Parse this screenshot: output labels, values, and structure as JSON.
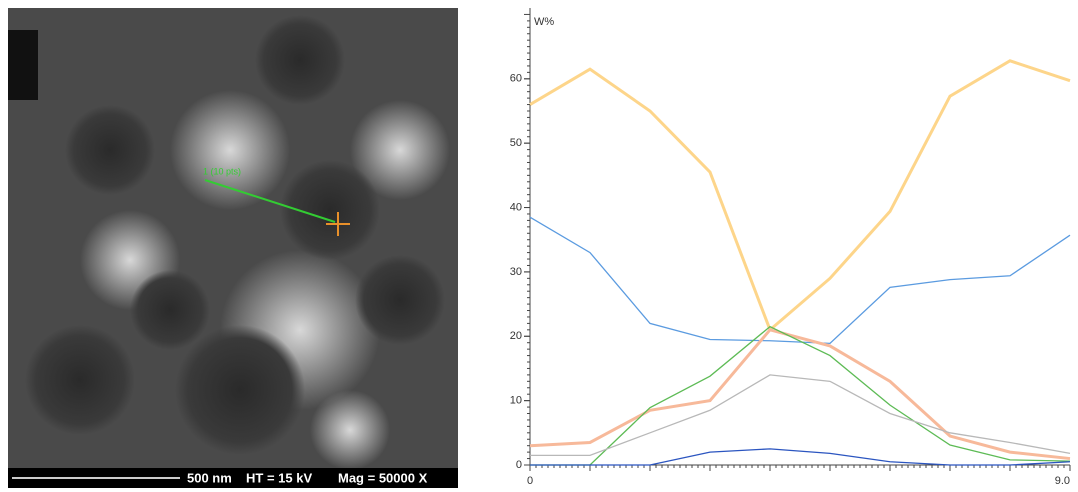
{
  "image": {
    "line_label": "1 (10 pts)",
    "scale": "500 nm",
    "voltage": "HT = 15 kV",
    "magnification": "Mag = 50000 X"
  },
  "chart_data": {
    "type": "line",
    "y_label": "W%",
    "x": [
      0,
      1,
      2,
      3,
      4,
      5,
      6,
      7,
      8,
      9
    ],
    "xlim": [
      0,
      9
    ],
    "xticks": [
      0,
      {
        "value": 9,
        "label": "9.0"
      }
    ],
    "ylim": [
      0,
      71
    ],
    "yticks": [
      0,
      10,
      20,
      30,
      40,
      50,
      60
    ],
    "grid": false,
    "series": [
      {
        "color": "#fdd58a",
        "values": [
          56,
          61.5,
          55,
          45.5,
          21,
          29,
          39.4,
          57.3,
          62.8,
          59.7
        ]
      },
      {
        "color": "#5b9be0",
        "values": [
          38.5,
          33,
          22,
          19.5,
          19.3,
          18.9,
          27.6,
          28.8,
          29.4,
          35.7
        ]
      },
      {
        "color": "#f7b99a",
        "values": [
          3,
          3.5,
          8.5,
          10,
          21,
          18.5,
          13,
          4.5,
          2,
          1
        ]
      },
      {
        "color": "#5dbb55",
        "values": [
          0,
          0,
          8.9,
          13.8,
          21.5,
          17,
          9.3,
          3.1,
          0.8,
          0.6
        ]
      },
      {
        "color": "#b8b8b8",
        "values": [
          1.5,
          1.5,
          5,
          8.5,
          14,
          13,
          8,
          5,
          3.5,
          1.8
        ]
      },
      {
        "color": "#2b55c0",
        "values": [
          0,
          0,
          0,
          2,
          2.5,
          1.8,
          0.5,
          0,
          0,
          0.5
        ]
      }
    ]
  }
}
